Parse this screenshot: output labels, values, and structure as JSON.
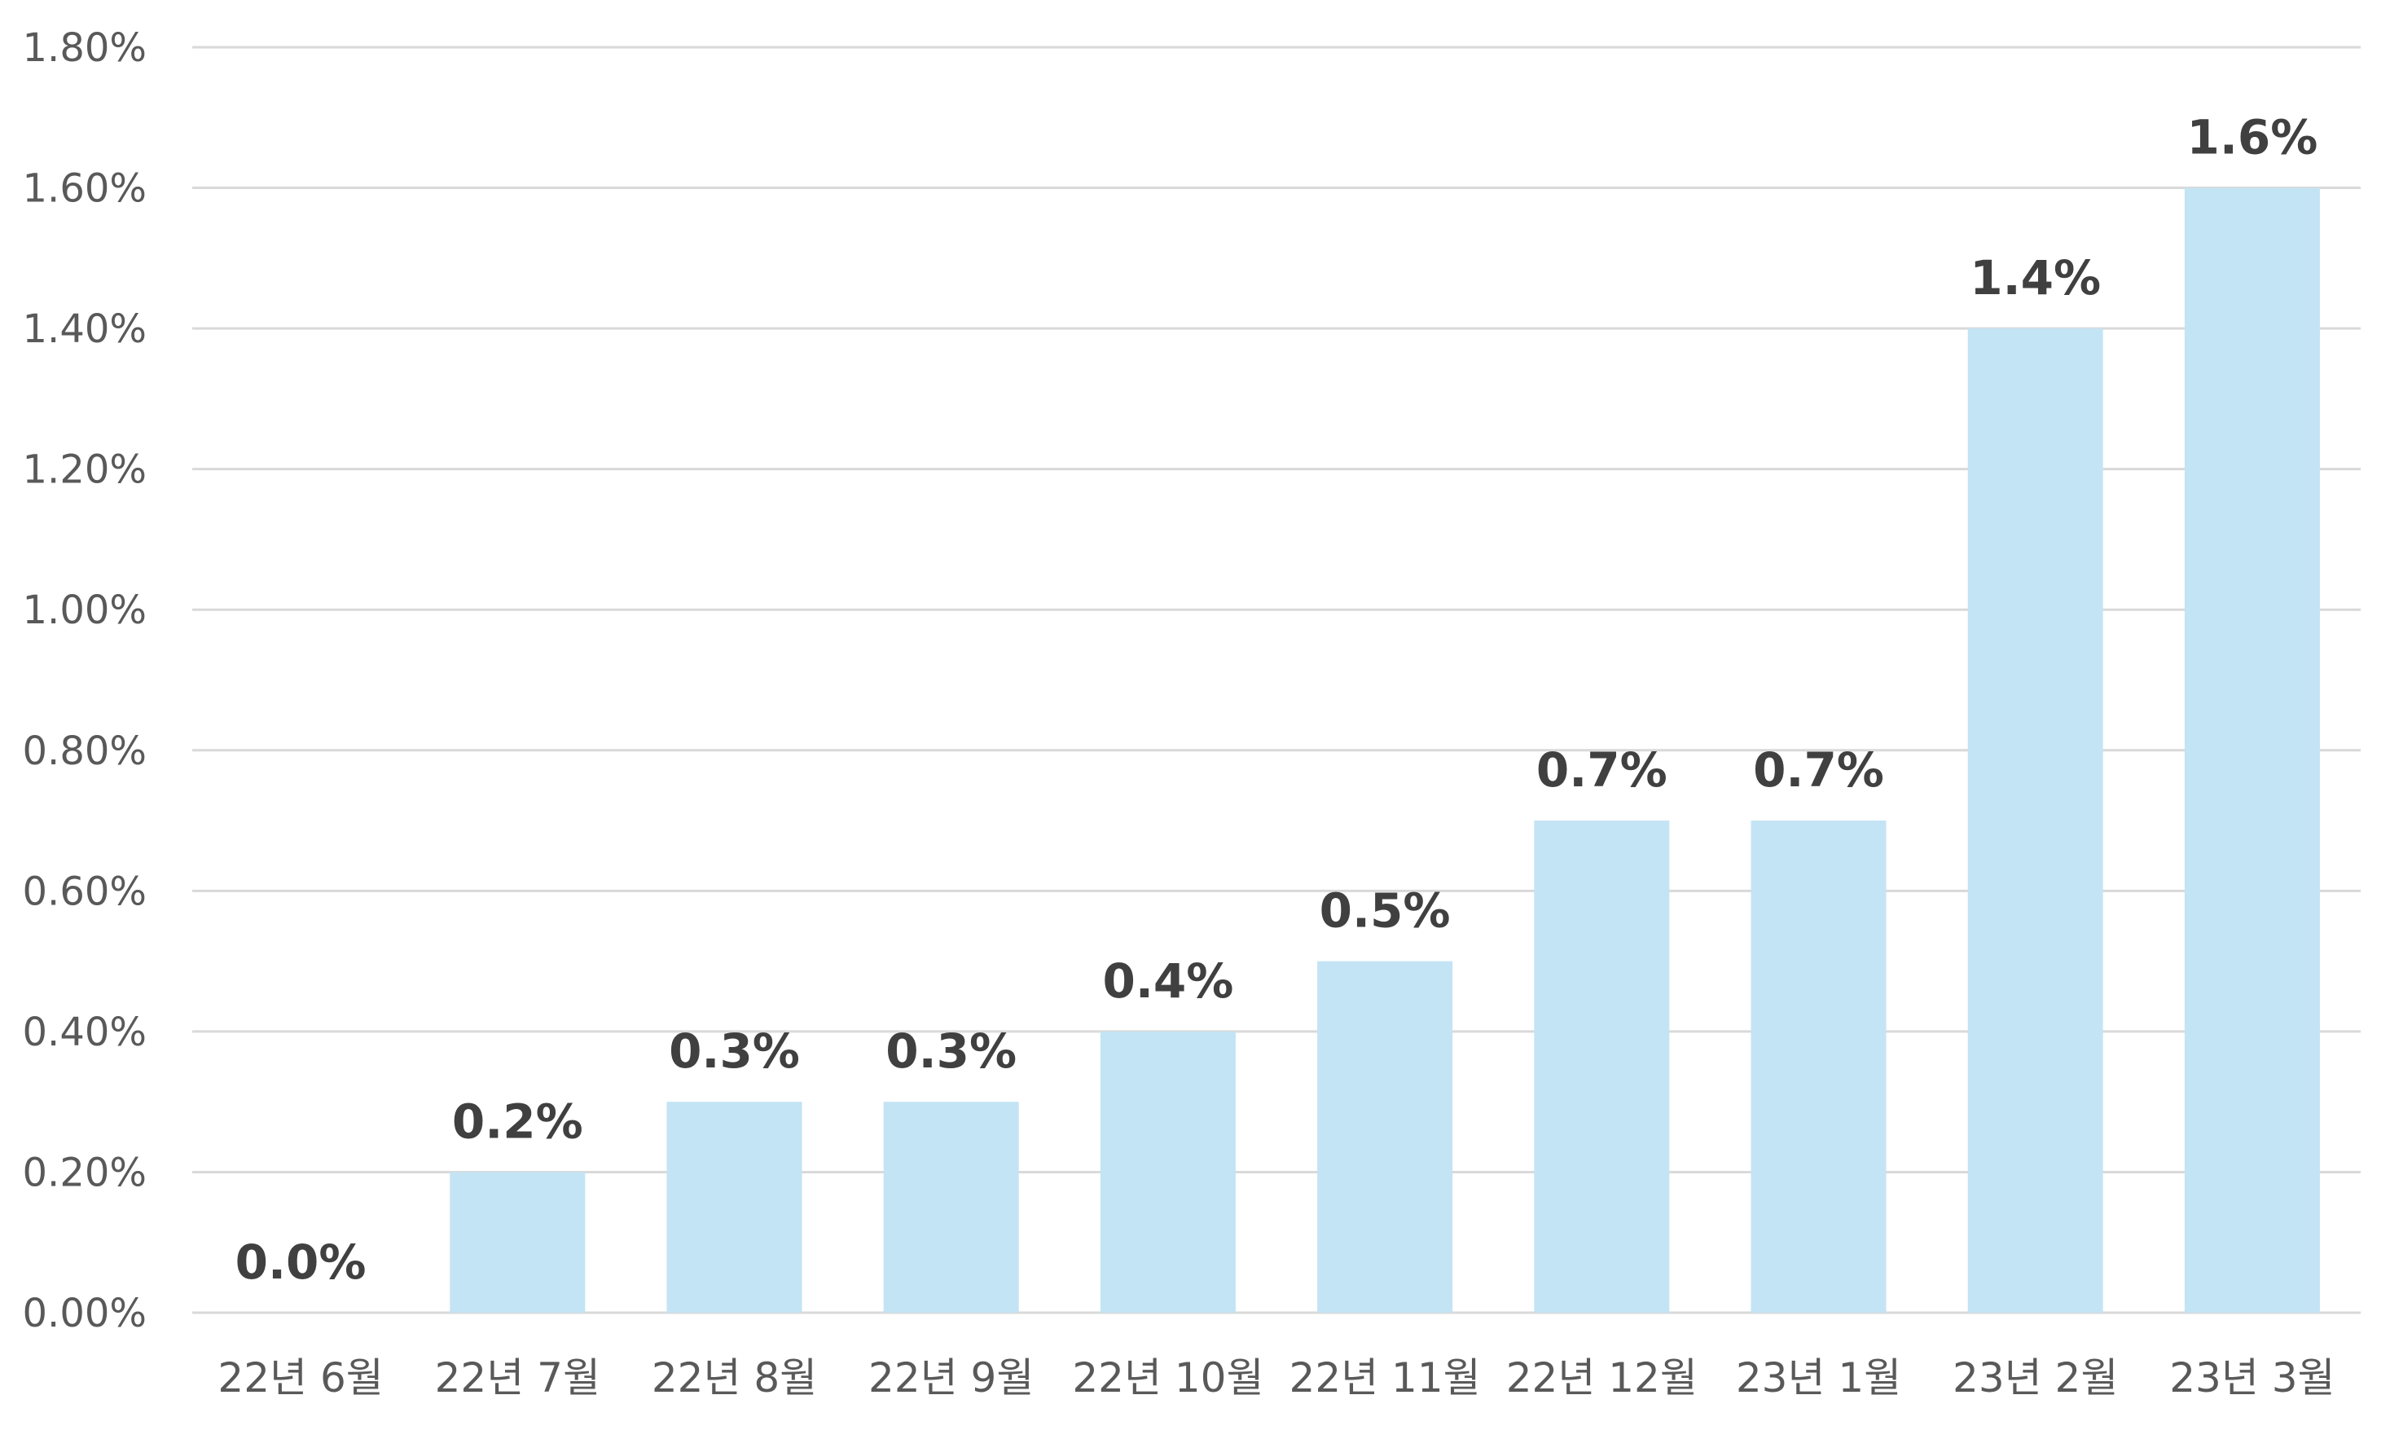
{
  "chart_data": {
    "type": "bar",
    "categories": [
      "22년 6월",
      "22년 7월",
      "22년 8월",
      "22년 9월",
      "22년 10월",
      "22년 11월",
      "22년 12월",
      "23년 1월",
      "23년 2월",
      "23년 3월"
    ],
    "values": [
      0.0,
      0.2,
      0.3,
      0.3,
      0.4,
      0.5,
      0.7,
      0.7,
      1.4,
      1.6
    ],
    "data_labels": [
      "0.0%",
      "0.2%",
      "0.3%",
      "0.3%",
      "0.4%",
      "0.5%",
      "0.7%",
      "0.7%",
      "1.4%",
      "1.6%"
    ],
    "y_ticks": [
      0.0,
      0.2,
      0.4,
      0.6,
      0.8,
      1.0,
      1.2,
      1.4,
      1.6,
      1.8
    ],
    "y_tick_labels": [
      "0.00%",
      "0.20%",
      "0.40%",
      "0.60%",
      "0.80%",
      "1.00%",
      "1.20%",
      "1.40%",
      "1.60%",
      "1.80%"
    ],
    "ylim": [
      0.0,
      1.8
    ],
    "title": "",
    "xlabel": "",
    "ylabel": "",
    "grid": true,
    "legend": "none",
    "bar_color": "#c3e4f4",
    "grid_color": "#d9d9d9",
    "label_color": "#404040",
    "tick_color": "#595959"
  }
}
